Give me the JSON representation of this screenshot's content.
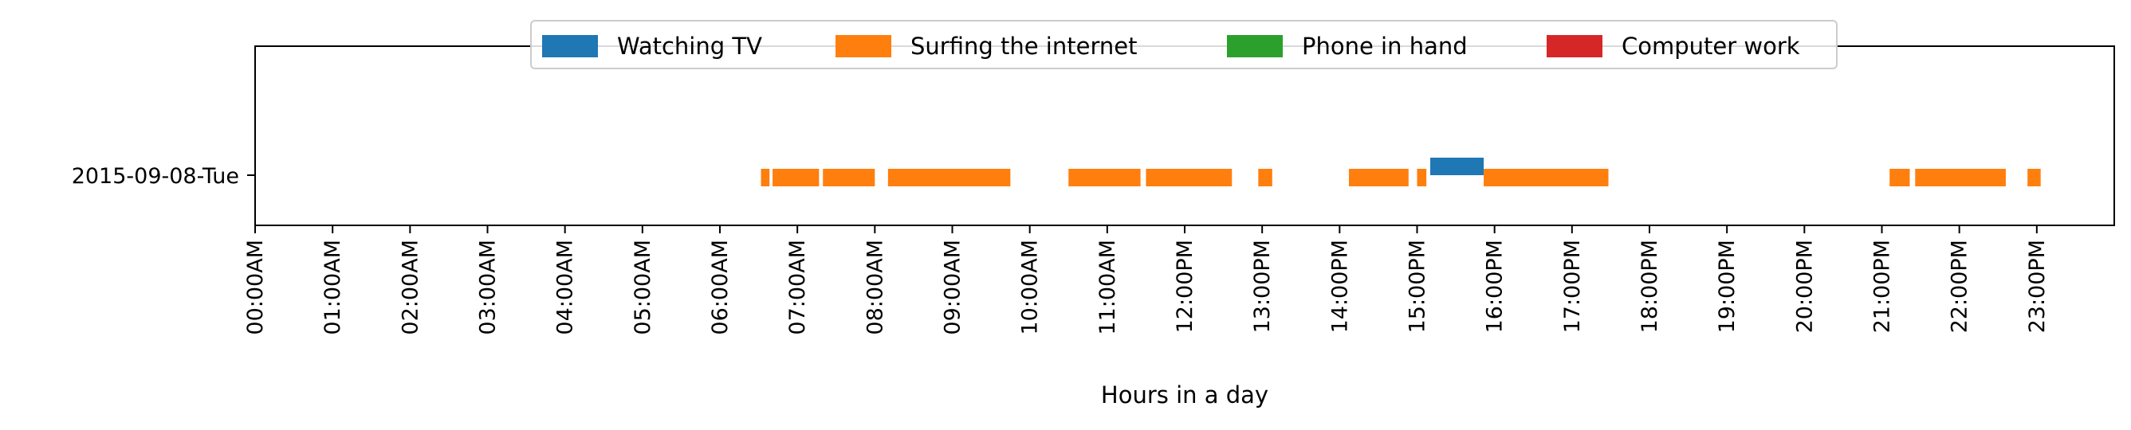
{
  "chart_data": {
    "type": "timeline",
    "title": "",
    "xlabel": "Hours in a day",
    "ylabel": "",
    "xlim": [
      0,
      24
    ],
    "rows": [
      "2015-09-08-Tue"
    ],
    "tick_values": [
      0,
      1,
      2,
      3,
      4,
      5,
      6,
      7,
      8,
      9,
      10,
      11,
      12,
      13,
      14,
      15,
      16,
      17,
      18,
      19,
      20,
      21,
      22,
      23
    ],
    "tick_labels": [
      "00:00AM",
      "01:00AM",
      "02:00AM",
      "03:00AM",
      "04:00AM",
      "05:00AM",
      "06:00AM",
      "07:00AM",
      "08:00AM",
      "09:00AM",
      "10:00AM",
      "11:00AM",
      "12:00PM",
      "13:00PM",
      "14:00PM",
      "15:00PM",
      "16:00PM",
      "17:00PM",
      "18:00PM",
      "19:00PM",
      "20:00PM",
      "21:00PM",
      "22:00PM",
      "23:00PM"
    ],
    "legend_position": "top-center",
    "grid": false,
    "series": [
      {
        "name": "Watching TV",
        "color": "#1f77b4",
        "segments": [
          [
            15.17,
            15.86
          ]
        ]
      },
      {
        "name": "Surfing the internet",
        "color": "#ff7f0e",
        "segments": [
          [
            6.53,
            6.64
          ],
          [
            6.68,
            7.28
          ],
          [
            7.33,
            8.0
          ],
          [
            8.17,
            9.75
          ],
          [
            10.5,
            11.43
          ],
          [
            11.5,
            12.61
          ],
          [
            12.95,
            13.13
          ],
          [
            14.12,
            14.89
          ],
          [
            15.0,
            15.12
          ],
          [
            15.86,
            17.47
          ],
          [
            21.1,
            21.36
          ],
          [
            21.43,
            22.6
          ],
          [
            22.88,
            23.05
          ]
        ]
      },
      {
        "name": "Phone in hand",
        "color": "#2ca02c",
        "segments": []
      },
      {
        "name": "Computer work",
        "color": "#d62728",
        "segments": []
      }
    ]
  }
}
